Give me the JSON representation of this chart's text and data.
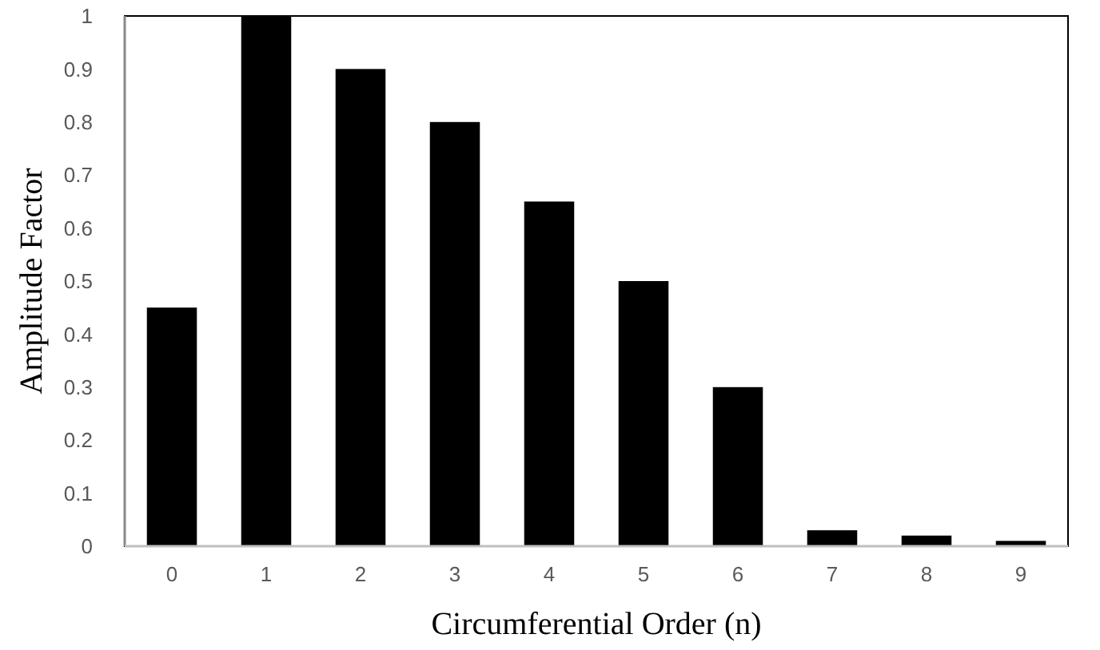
{
  "chart_data": {
    "type": "bar",
    "xlabel": "Circumferential Order (n)",
    "ylabel": "Amplitude Factor",
    "categories": [
      "0",
      "1",
      "2",
      "3",
      "4",
      "5",
      "6",
      "7",
      "8",
      "9"
    ],
    "values": [
      0.45,
      1,
      0.9,
      0.8,
      0.65,
      0.5,
      0.3,
      0.03,
      0.02,
      0.01
    ],
    "color": "#000000",
    "ylim": [
      0,
      1
    ],
    "yticks": [
      0,
      0.1,
      0.2,
      0.3,
      0.4,
      0.5,
      0.6,
      0.7,
      0.8,
      0.9,
      1
    ],
    "grid": false
  }
}
